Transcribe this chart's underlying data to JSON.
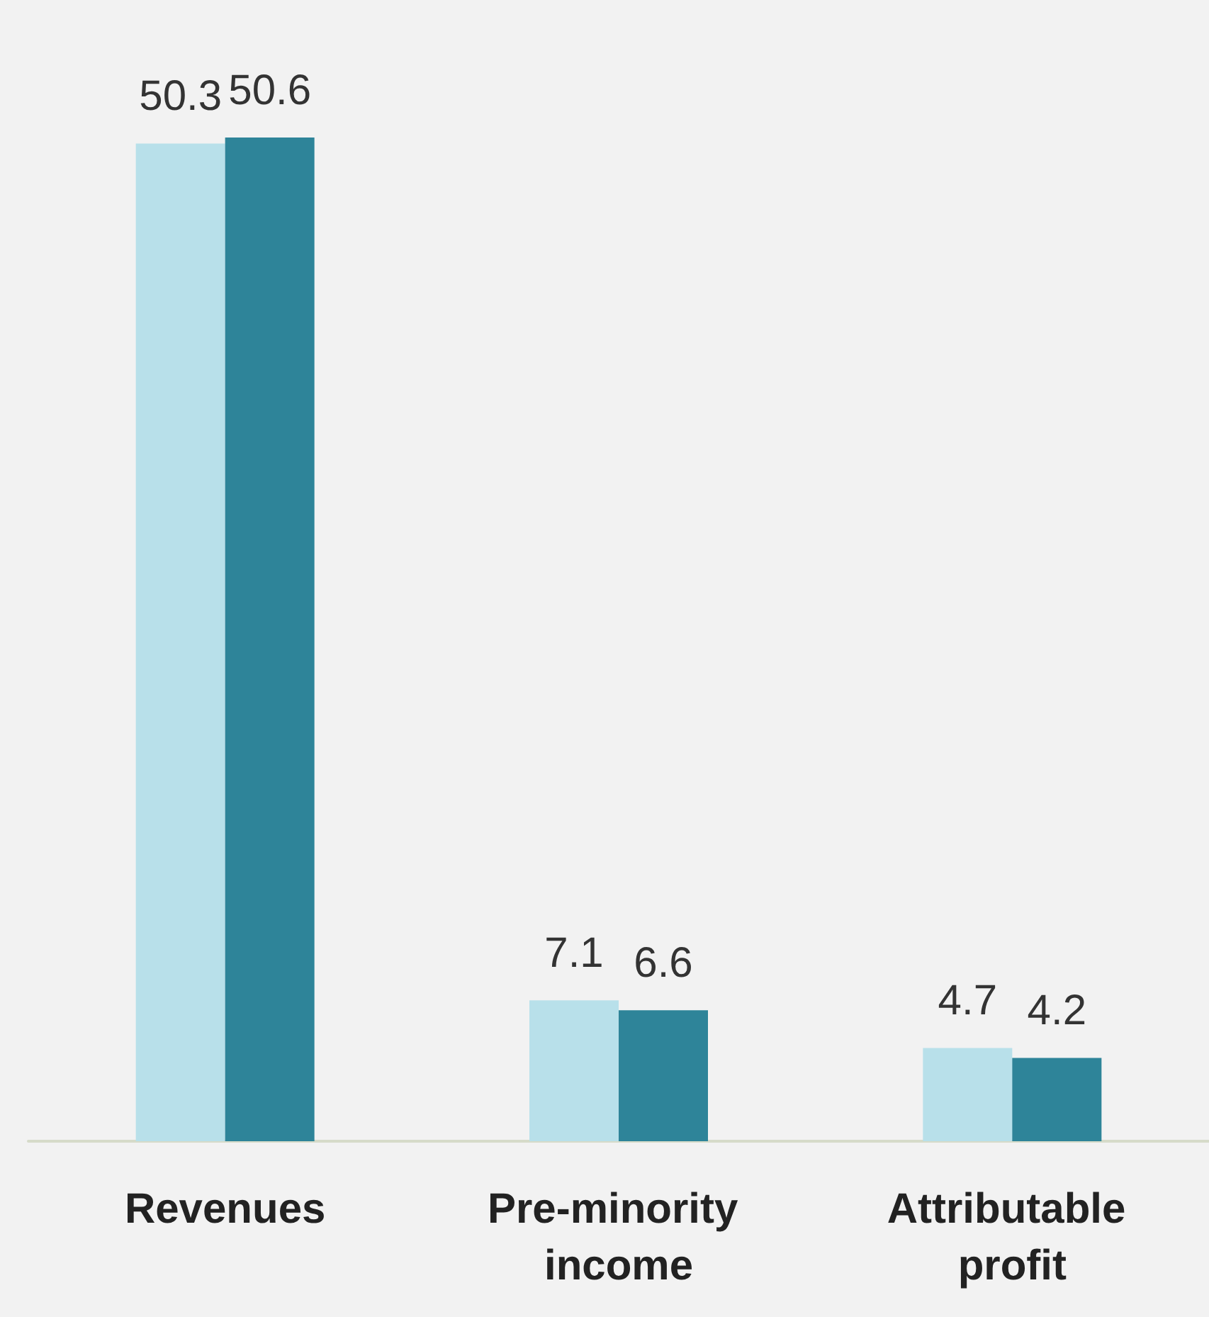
{
  "chart_data": {
    "type": "bar",
    "categories": [
      "Revenues",
      "Pre-minority income",
      "Attributable profit"
    ],
    "series": [
      {
        "color": "#b8e0ea",
        "values": [
          50.3,
          7.1,
          4.7
        ]
      },
      {
        "color": "#2e8499",
        "values": [
          50.6,
          6.6,
          4.2
        ]
      }
    ],
    "data_labels": true
  }
}
